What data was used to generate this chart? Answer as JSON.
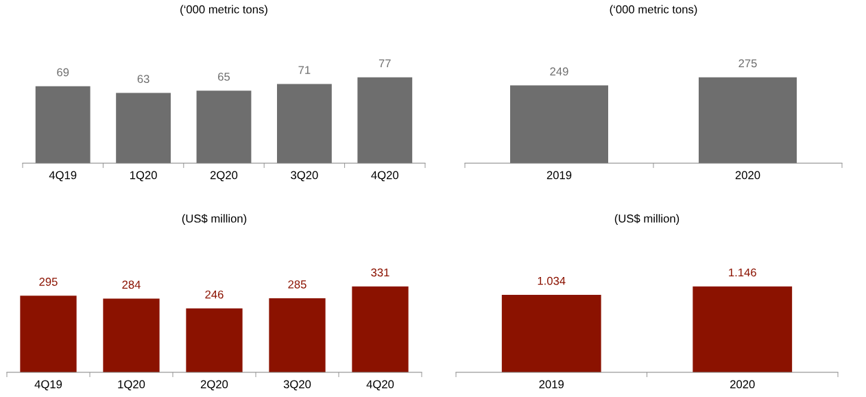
{
  "chart_data": [
    {
      "type": "bar",
      "title": "(‘000 metric tons)",
      "categories": [
        "4Q19",
        "1Q20",
        "2Q20",
        "3Q20",
        "4Q20"
      ],
      "values": [
        69,
        63,
        65,
        71,
        77
      ],
      "color": "#6e6e6e",
      "data_labels": true
    },
    {
      "type": "bar",
      "title": "(‘000 metric tons)",
      "categories": [
        "2019",
        "2020"
      ],
      "values": [
        249,
        275
      ],
      "color": "#6e6e6e",
      "data_labels": true
    },
    {
      "type": "bar",
      "title": "(US$ million)",
      "categories": [
        "4Q19",
        "1Q20",
        "2Q20",
        "3Q20",
        "4Q20"
      ],
      "values": [
        295,
        284,
        246,
        285,
        331
      ],
      "color": "#8b1200",
      "data_labels": true
    },
    {
      "type": "bar",
      "title": "(US$ million)",
      "categories": [
        "2019",
        "2020"
      ],
      "values": [
        1.034,
        1.146
      ],
      "color": "#8b1200",
      "data_labels": true
    }
  ]
}
